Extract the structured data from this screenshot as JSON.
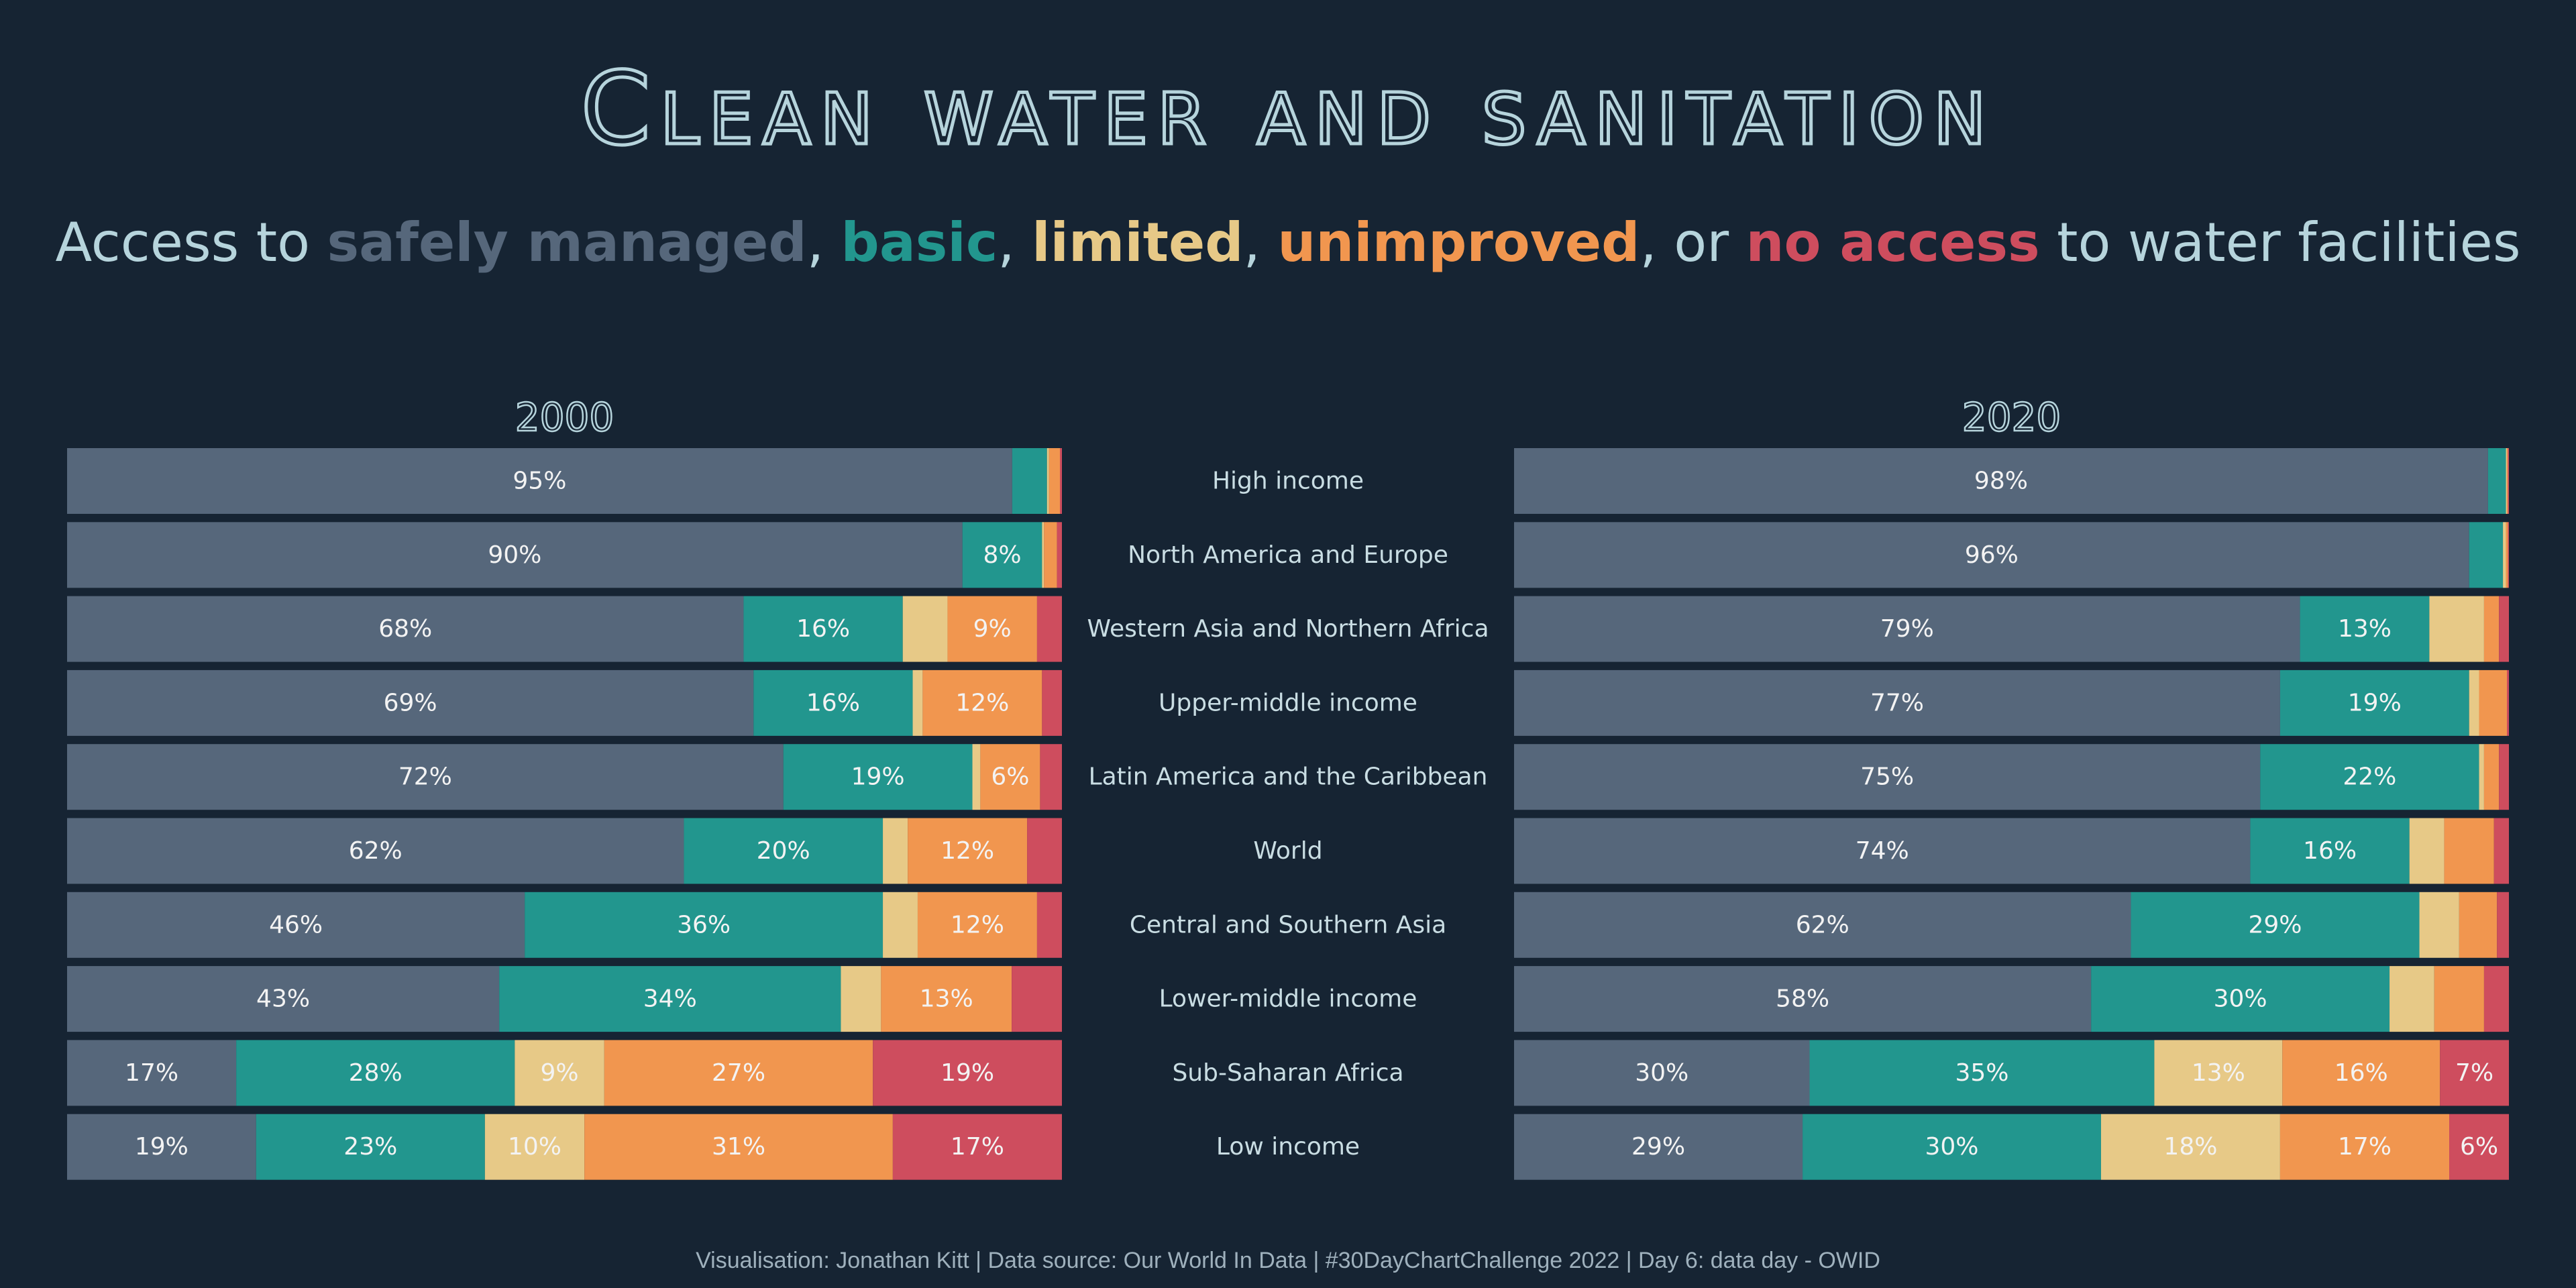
{
  "title": "Clean water and sanitation",
  "subtitle": {
    "prefix": "Access to ",
    "kw1": "safely managed",
    "sep1": ", ",
    "kw2": "basic",
    "sep2": ", ",
    "kw3": "limited",
    "sep3": ", ",
    "kw4": "unimproved",
    "sep4": ", or ",
    "kw5": "no access",
    "suffix": " to water facilities"
  },
  "caption": "Visualisation: Jonathan Kitt | Data source: Our World In Data | #30DayChartChallenge 2022 | Day 6: data day - OWID",
  "colors": {
    "background": "#162433",
    "safely managed": "#56677b",
    "basic": "#22968e",
    "limited": "#e7c987",
    "unimproved": "#f1964f",
    "no access": "#ce4d5e",
    "text": "#b6d4dc"
  },
  "chart_data": {
    "type": "bar",
    "orientation": "horizontal",
    "stacked": true,
    "stack_to": "percent",
    "categories": [
      "High income",
      "North America and Europe",
      "Western Asia and Northern Africa",
      "Upper-middle income",
      "Latin America and the Caribbean",
      "World",
      "Central and Southern Asia",
      "Lower-middle income",
      "Sub-Saharan Africa",
      "Low income"
    ],
    "stack_order": [
      "safely managed",
      "basic",
      "limited",
      "unimproved",
      "no access"
    ],
    "panels": [
      {
        "title": "2000",
        "values": [
          [
            95,
            3.5,
            0.2,
            1.1,
            0.2
          ],
          [
            90,
            8,
            0.2,
            1.3,
            0.5
          ],
          [
            68,
            16,
            4.5,
            9,
            2.5
          ],
          [
            69,
            16,
            1,
            12,
            2
          ],
          [
            72,
            19,
            0.8,
            6,
            2.2
          ],
          [
            62,
            20,
            2.5,
            12,
            3.5
          ],
          [
            46,
            36,
            3.5,
            12,
            2.5
          ],
          [
            43,
            34,
            4,
            13,
            5
          ],
          [
            17,
            28,
            9,
            27,
            19
          ],
          [
            19,
            23,
            10,
            31,
            17
          ]
        ],
        "labels": [
          [
            "95%",
            "",
            "",
            "",
            ""
          ],
          [
            "90%",
            "8%",
            "",
            "",
            ""
          ],
          [
            "68%",
            "16%",
            "",
            "9%",
            ""
          ],
          [
            "69%",
            "16%",
            "",
            "12%",
            ""
          ],
          [
            "72%",
            "19%",
            "",
            "6%",
            ""
          ],
          [
            "62%",
            "20%",
            "",
            "12%",
            ""
          ],
          [
            "46%",
            "36%",
            "",
            "12%",
            ""
          ],
          [
            "43%",
            "34%",
            "",
            "13%",
            ""
          ],
          [
            "17%",
            "28%",
            "9%",
            "27%",
            "19%"
          ],
          [
            "19%",
            "23%",
            "10%",
            "31%",
            "17%"
          ]
        ]
      },
      {
        "title": "2020",
        "values": [
          [
            98,
            1.8,
            0.1,
            0.1,
            0.1
          ],
          [
            96,
            3.4,
            0.3,
            0.2,
            0.1
          ],
          [
            79,
            13,
            5.5,
            1.5,
            1
          ],
          [
            77,
            19,
            1,
            2.8,
            0.2
          ],
          [
            75,
            22,
            0.5,
            1.5,
            1
          ],
          [
            74,
            16,
            3.5,
            5,
            1.5
          ],
          [
            62,
            29,
            4,
            3.8,
            1.2
          ],
          [
            58,
            30,
            4.5,
            5,
            2.5
          ],
          [
            30,
            35,
            13,
            16,
            7
          ],
          [
            29,
            30,
            18,
            17,
            6
          ]
        ],
        "labels": [
          [
            "98%",
            "",
            "",
            "",
            ""
          ],
          [
            "96%",
            "",
            "",
            "",
            ""
          ],
          [
            "79%",
            "13%",
            "",
            "",
            ""
          ],
          [
            "77%",
            "19%",
            "",
            "",
            ""
          ],
          [
            "75%",
            "22%",
            "",
            "",
            ""
          ],
          [
            "74%",
            "16%",
            "",
            "",
            ""
          ],
          [
            "62%",
            "29%",
            "",
            "",
            ""
          ],
          [
            "58%",
            "30%",
            "",
            "",
            ""
          ],
          [
            "30%",
            "35%",
            "13%",
            "16%",
            "7%"
          ],
          [
            "29%",
            "30%",
            "18%",
            "17%",
            "6%"
          ]
        ]
      }
    ]
  }
}
